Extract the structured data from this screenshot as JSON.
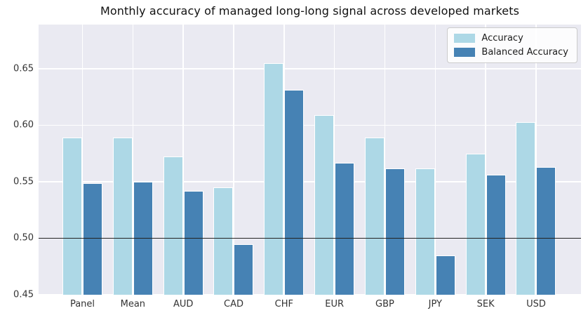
{
  "title": "Monthly accuracy of managed long-long signal across developed markets",
  "legend": {
    "items": [
      {
        "label": "Accuracy",
        "color": "#ADD8E6"
      },
      {
        "label": "Balanced Accuracy",
        "color": "#4682B4"
      }
    ]
  },
  "colors": {
    "plot_background": "#EAEAF2",
    "gridline": "#FFFFFF",
    "reference_line": "#222222",
    "accuracy_bar": "#ADD8E6",
    "balanced_accuracy_bar": "#4682B4"
  },
  "chart_data": {
    "type": "bar",
    "title": "Monthly accuracy of managed long-long signal across developed markets",
    "categories": [
      "Panel",
      "Mean",
      "AUD",
      "CAD",
      "CHF",
      "EUR",
      "GBP",
      "JPY",
      "SEK",
      "USD"
    ],
    "series": [
      {
        "name": "Accuracy",
        "color": "#ADD8E6",
        "values": [
          0.589,
          0.589,
          0.572,
          0.545,
          0.655,
          0.609,
          0.589,
          0.562,
          0.575,
          0.603
        ]
      },
      {
        "name": "Balanced Accuracy",
        "color": "#4682B4",
        "values": [
          0.549,
          0.55,
          0.542,
          0.495,
          0.631,
          0.567,
          0.562,
          0.485,
          0.556,
          0.563
        ]
      }
    ],
    "xlabel": "",
    "ylabel": "",
    "ylim": [
      0.45,
      0.689
    ],
    "yticks": [
      0.45,
      0.5,
      0.55,
      0.6,
      0.65
    ],
    "ytick_labels": [
      "0.45",
      "0.50",
      "0.55",
      "0.60",
      "0.65"
    ],
    "reference_hline": 0.5,
    "grid": true,
    "legend_position": "upper right"
  }
}
